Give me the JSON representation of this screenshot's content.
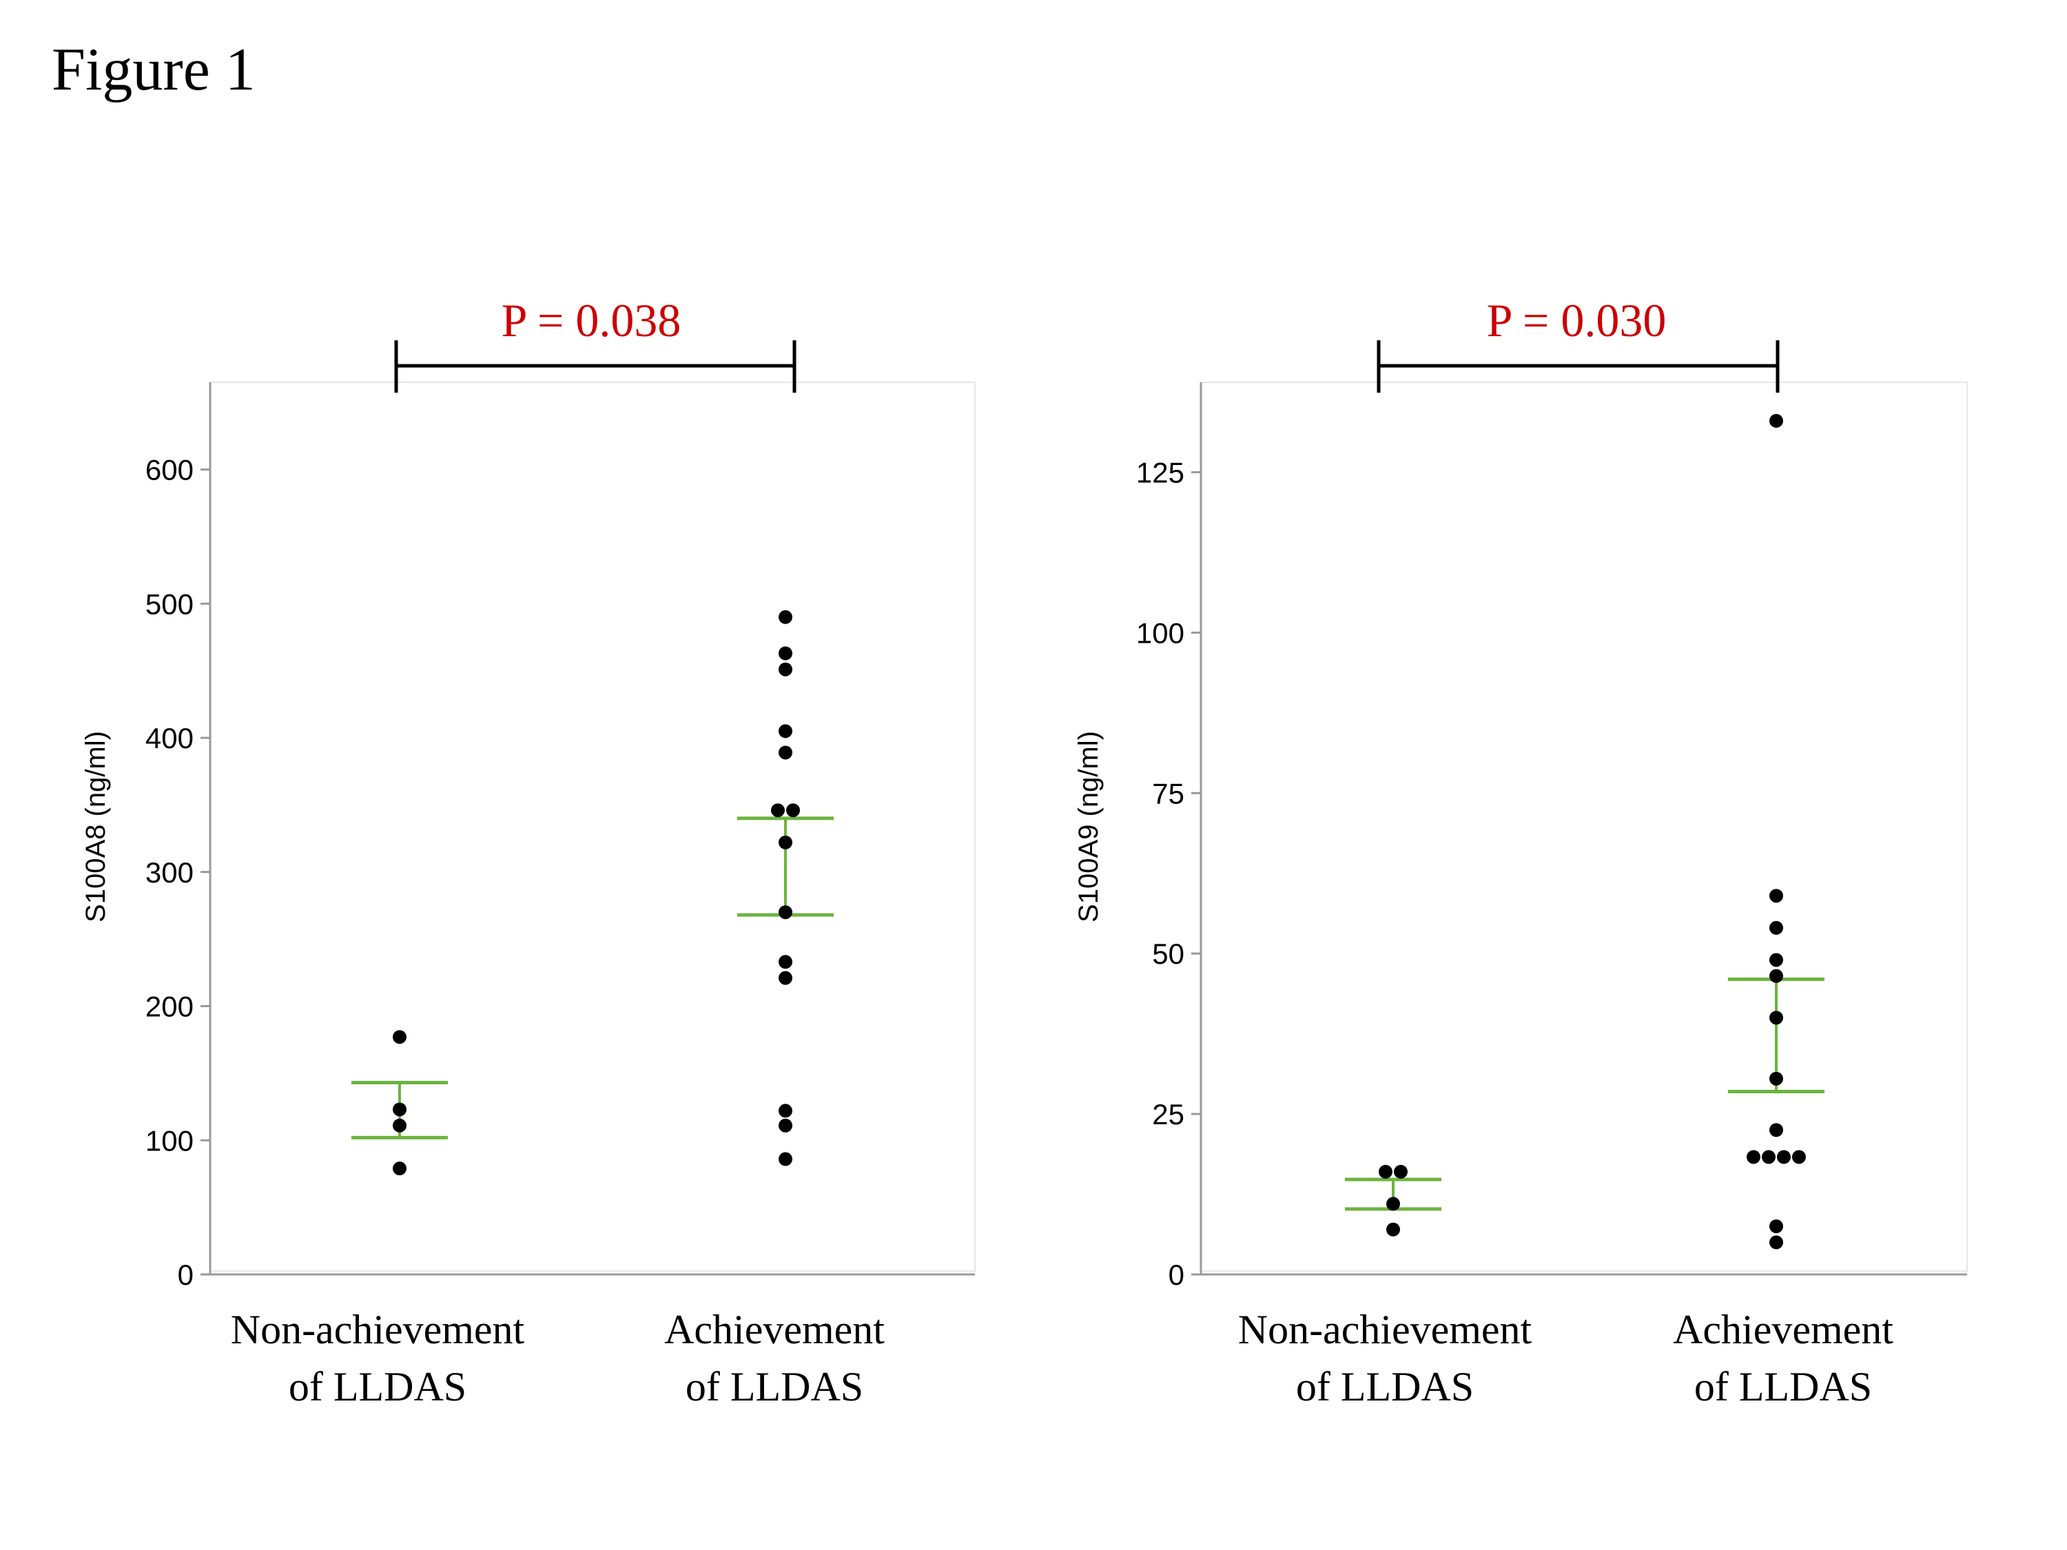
{
  "figure": {
    "title": "Figure 1"
  },
  "colors": {
    "points": "#000000",
    "error_bars": "#6db33f",
    "p_value": "#cc0000",
    "axis": "#999999",
    "frame": "#e6e6e6"
  },
  "chart_data": [
    {
      "type": "scatter",
      "ylabel": "S100A8 (ng/ml)",
      "ylim": [
        0,
        665
      ],
      "yticks": [
        "0",
        "100",
        "200",
        "300",
        "400",
        "500",
        "600"
      ],
      "grid": false,
      "categories": [
        {
          "line1": "Non-achievement",
          "line2": "of LLDAS"
        },
        {
          "line1": "Achievement",
          "line2": "of LLDAS"
        }
      ],
      "comparison": {
        "text": "P = 0.038"
      },
      "groups": [
        {
          "values": [
            177,
            123,
            111,
            79
          ],
          "error_bar": [
            102,
            143
          ]
        },
        {
          "values": [
            490,
            463,
            451,
            405,
            389,
            346,
            346,
            322,
            270,
            233,
            221,
            122,
            111,
            86
          ],
          "error_bar": [
            268,
            340
          ]
        }
      ]
    },
    {
      "type": "scatter",
      "ylabel": "S100A9 (ng/ml)",
      "ylim": [
        0,
        139
      ],
      "yticks": [
        "0",
        "25",
        "50",
        "75",
        "100",
        "125"
      ],
      "grid": false,
      "categories": [
        {
          "line1": "Non-achievement",
          "line2": "of LLDAS"
        },
        {
          "line1": "Achievement",
          "line2": "of LLDAS"
        }
      ],
      "comparison": {
        "text": "P = 0.030"
      },
      "groups": [
        {
          "values": [
            16,
            16,
            11,
            7
          ],
          "error_bar": [
            10.2,
            14.8
          ]
        },
        {
          "values": [
            133,
            59,
            54,
            49,
            46.5,
            40,
            30.5,
            22.5,
            18.3,
            18.3,
            18.3,
            18.3,
            7.5,
            5
          ],
          "error_bar": [
            28.5,
            46
          ]
        }
      ]
    }
  ]
}
